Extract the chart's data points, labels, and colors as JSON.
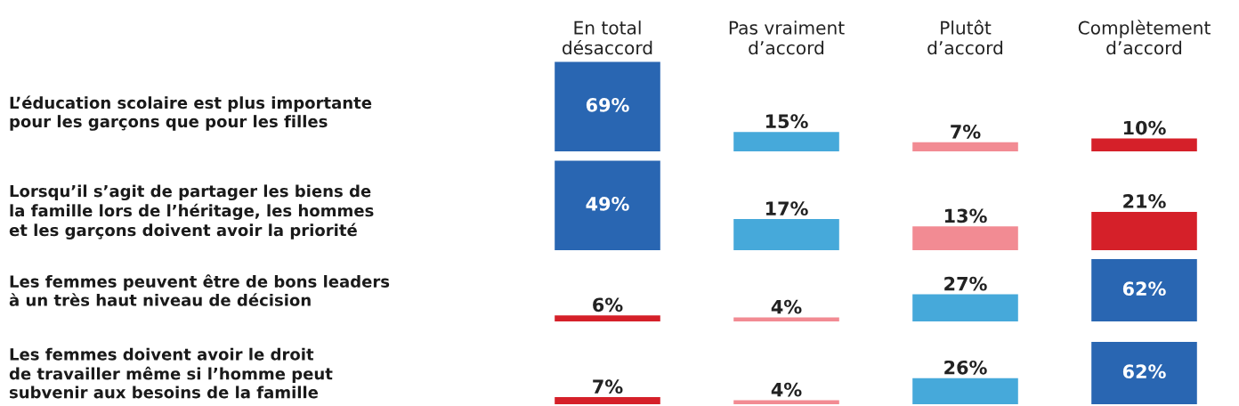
{
  "chart_data": [
    {
      "type": "bar",
      "ylabel": "L’éducation scolaire est plus importante\npour les garçons que pour les filles",
      "categories": [
        "En total\ndésaccord",
        "Pas vraiment\nd’accord",
        "Plutôt\nd’accord",
        "Complètement\nd’accord"
      ],
      "values": [
        69,
        15,
        7,
        10
      ],
      "value_labels": [
        "69%",
        "15%",
        "7%",
        "10%"
      ],
      "colors": [
        "#2966b2",
        "#46a9da",
        "#f28b93",
        "#d52029"
      ]
    },
    {
      "type": "bar",
      "ylabel": "Lorsqu’il s’agit de partager les biens de\nla famille lors de l’héritage, les hommes\net les garçons doivent avoir la priorité",
      "categories": [
        null,
        null,
        null,
        null
      ],
      "values": [
        49,
        17,
        13,
        21
      ],
      "value_labels": [
        "49%",
        "17%",
        "13%",
        "21%"
      ],
      "colors": [
        "#2966b2",
        "#46a9da",
        "#f28b93",
        "#d52029"
      ]
    },
    {
      "type": "bar",
      "ylabel": "Les femmes peuvent être de bons leaders\nà un très haut niveau de décision",
      "categories": [
        null,
        null,
        null,
        null
      ],
      "values": [
        6,
        4,
        27,
        62
      ],
      "value_labels": [
        "6%",
        "4%",
        "27%",
        "62%"
      ],
      "colors": [
        "#d52029",
        "#f28b93",
        "#46a9da",
        "#2966b2"
      ]
    },
    {
      "type": "bar",
      "ylabel": "Les femmes doivent avoir le droit\nde travailler même si l’homme peut\nsubvenir aux besoins de la famille",
      "categories": [
        null,
        null,
        null,
        null
      ],
      "values": [
        7,
        4,
        26,
        62
      ],
      "value_labels": [
        "7%",
        "4%",
        "26%",
        "62%"
      ],
      "colors": [
        "#d52029",
        "#f28b93",
        "#46a9da",
        "#2966b2"
      ]
    }
  ]
}
